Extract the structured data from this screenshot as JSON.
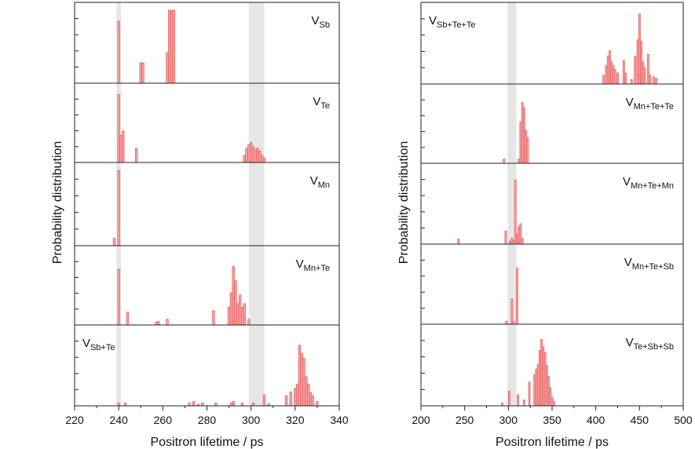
{
  "colors": {
    "bar_fill": "#f6a3a3",
    "bar_stroke": "#e45a5a",
    "band": "#e6e6e6",
    "axis": "#222222"
  },
  "chart_data": [
    {
      "type": "bar",
      "ylabel": "Probability distribution",
      "xlabel": "Positron lifetime / ps",
      "xlim": [
        220,
        340
      ],
      "xticks": [
        220,
        240,
        260,
        280,
        300,
        320,
        340
      ],
      "ylim": [
        0,
        1
      ],
      "shaded_bands": [
        [
          239,
          241
        ],
        [
          299,
          306
        ]
      ],
      "panels": [
        {
          "label_main": "V",
          "label_sub": "Sb",
          "label_align": "right",
          "bars": [
            [
              240,
              0.85
            ],
            [
              250,
              0.28
            ],
            [
              251,
              0.28
            ],
            [
              262,
              0.42
            ],
            [
              263,
              1.0
            ],
            [
              264,
              1.0
            ],
            [
              265,
              1.0
            ]
          ]
        },
        {
          "label_main": "V",
          "label_sub": "Te",
          "label_align": "right",
          "bars": [
            [
              240,
              0.95
            ],
            [
              241,
              0.38
            ],
            [
              242,
              0.44
            ],
            [
              248,
              0.2
            ],
            [
              297,
              0.1
            ],
            [
              298,
              0.2
            ],
            [
              299,
              0.25
            ],
            [
              300,
              0.28
            ],
            [
              301,
              0.22
            ],
            [
              302,
              0.18
            ],
            [
              303,
              0.2
            ],
            [
              304,
              0.16
            ],
            [
              305,
              0.1
            ],
            [
              306,
              0.06
            ]
          ]
        },
        {
          "label_main": "V",
          "label_sub": "Mn",
          "label_align": "right",
          "bars": [
            [
              238,
              0.1
            ],
            [
              240,
              1.0
            ]
          ]
        },
        {
          "label_main": "V",
          "label_sub": "Mn+Te",
          "label_align": "right",
          "bars": [
            [
              240,
              0.78
            ],
            [
              244,
              0.18
            ],
            [
              257,
              0.04
            ],
            [
              258,
              0.05
            ],
            [
              262,
              0.08
            ],
            [
              283,
              0.2
            ],
            [
              290,
              0.25
            ],
            [
              291,
              0.45
            ],
            [
              292,
              0.82
            ],
            [
              293,
              0.62
            ],
            [
              294,
              0.3
            ],
            [
              295,
              0.42
            ],
            [
              296,
              0.25
            ],
            [
              297,
              0.3
            ],
            [
              299,
              0.08
            ]
          ]
        },
        {
          "label_main": "V",
          "label_sub": "Sb+Te",
          "label_align": "left",
          "bars": [
            [
              240,
              0.04
            ],
            [
              243,
              0.04
            ],
            [
              272,
              0.04
            ],
            [
              274,
              0.06
            ],
            [
              276,
              0.02
            ],
            [
              278,
              0.04
            ],
            [
              284,
              0.04
            ],
            [
              291,
              0.04
            ],
            [
              292,
              0.06
            ],
            [
              296,
              0.04
            ],
            [
              301,
              0.04
            ],
            [
              306,
              0.15
            ],
            [
              308,
              0.03
            ],
            [
              316,
              0.14
            ],
            [
              318,
              0.19
            ],
            [
              320,
              0.24
            ],
            [
              321,
              0.3
            ],
            [
              322,
              0.83
            ],
            [
              323,
              0.72
            ],
            [
              324,
              0.65
            ],
            [
              325,
              0.4
            ],
            [
              326,
              0.3
            ],
            [
              327,
              0.18
            ],
            [
              328,
              0.14
            ],
            [
              330,
              0.06
            ]
          ]
        }
      ]
    },
    {
      "type": "bar",
      "ylabel": "Probability distribution",
      "xlabel": "Positron lifetime / ps",
      "xlim": [
        200,
        500
      ],
      "xticks": [
        200,
        250,
        300,
        350,
        400,
        450,
        500
      ],
      "ylim": [
        0,
        1
      ],
      "shaded_bands": [
        [
          299,
          309
        ]
      ],
      "panels": [
        {
          "label_main": "V",
          "label_sub": "Sb+Te+Te",
          "label_align": "left",
          "bars": [
            [
              409,
              0.12
            ],
            [
              412,
              0.25
            ],
            [
              414,
              0.38
            ],
            [
              416,
              0.45
            ],
            [
              418,
              0.3
            ],
            [
              420,
              0.25
            ],
            [
              422,
              0.2
            ],
            [
              425,
              0.15
            ],
            [
              432,
              0.32
            ],
            [
              434,
              0.15
            ],
            [
              441,
              0.06
            ],
            [
              445,
              0.38
            ],
            [
              448,
              0.6
            ],
            [
              450,
              0.95
            ],
            [
              452,
              0.58
            ],
            [
              454,
              0.3
            ],
            [
              456,
              0.22
            ],
            [
              460,
              0.4
            ],
            [
              462,
              0.12
            ],
            [
              466,
              0.1
            ],
            [
              469,
              0.08
            ]
          ]
        },
        {
          "label_main": "V",
          "label_sub": "Mn+Te+Te",
          "label_align": "right",
          "bars": [
            [
              295,
              0.06
            ],
            [
              312,
              0.06
            ],
            [
              314,
              0.58
            ],
            [
              316,
              0.85
            ],
            [
              318,
              0.78
            ],
            [
              320,
              0.46
            ],
            [
              322,
              0.36
            ]
          ]
        },
        {
          "label_main": "V",
          "label_sub": "Mn+Te+Mn",
          "label_align": "right",
          "bars": [
            [
              243,
              0.07
            ],
            [
              297,
              0.18
            ],
            [
              302,
              0.04
            ],
            [
              304,
              0.08
            ],
            [
              306,
              0.05
            ],
            [
              308,
              0.88
            ],
            [
              310,
              0.14
            ],
            [
              312,
              0.24
            ],
            [
              314,
              0.28
            ],
            [
              316,
              0.08
            ]
          ]
        },
        {
          "label_main": "V",
          "label_sub": "Mn+Te+Sb",
          "label_align": "right",
          "bars": [
            [
              298,
              0.04
            ],
            [
              304,
              0.35
            ],
            [
              306,
              0.04
            ],
            [
              310,
              0.78
            ]
          ]
        },
        {
          "label_main": "V",
          "label_sub": "Te+Sb+Sb",
          "label_align": "right",
          "bars": [
            [
              293,
              0.04
            ],
            [
              301,
              0.2
            ],
            [
              311,
              0.15
            ],
            [
              318,
              0.08
            ],
            [
              324,
              0.32
            ],
            [
              330,
              0.42
            ],
            [
              332,
              0.5
            ],
            [
              334,
              0.56
            ],
            [
              336,
              0.75
            ],
            [
              338,
              0.9
            ],
            [
              340,
              0.8
            ],
            [
              342,
              0.72
            ],
            [
              344,
              0.55
            ],
            [
              346,
              0.4
            ],
            [
              348,
              0.25
            ],
            [
              350,
              0.12
            ],
            [
              352,
              0.06
            ]
          ]
        }
      ]
    }
  ]
}
